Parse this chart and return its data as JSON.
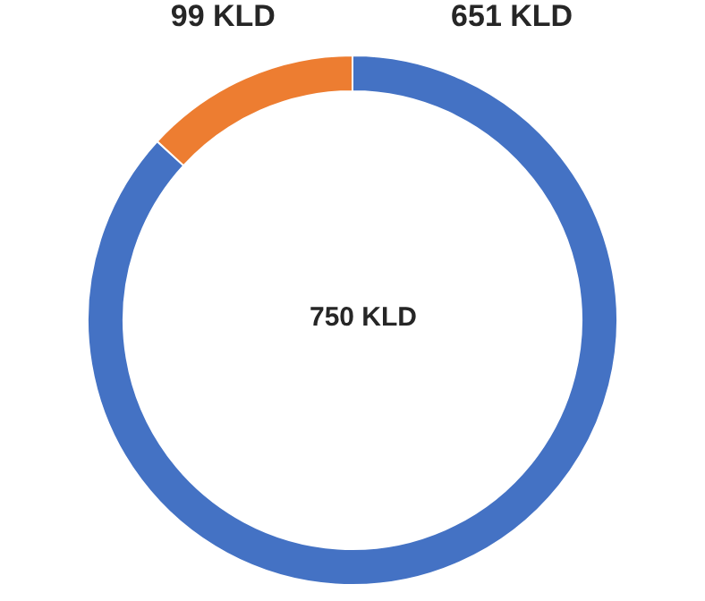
{
  "chart_data": {
    "type": "donut",
    "categories": [
      null,
      null
    ],
    "values": [
      651,
      99
    ],
    "colors": [
      "#4472c4",
      "#ed7d31"
    ],
    "value_labels": [
      "651 KLD",
      "99 KLD"
    ],
    "annotations": [
      "750 KLD"
    ],
    "legend": false
  }
}
